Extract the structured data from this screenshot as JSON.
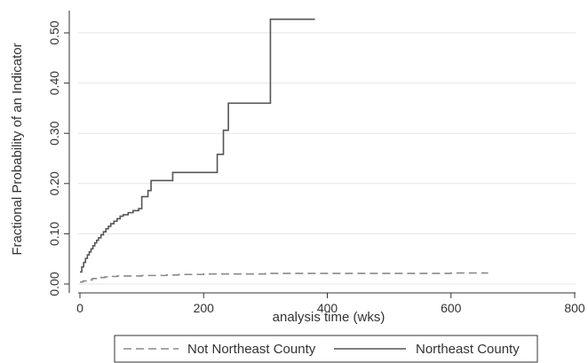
{
  "chart_data": {
    "type": "line",
    "subtype": "step",
    "xlabel": "analysis time (wks)",
    "ylabel": "Fractional Probability of an Indicator",
    "xlim": [
      0,
      800
    ],
    "ylim": [
      0,
      0.55
    ],
    "x_ticks": [
      {
        "value": 0,
        "label": "0"
      },
      {
        "value": 200,
        "label": "200"
      },
      {
        "value": 400,
        "label": "400"
      },
      {
        "value": 600,
        "label": "600"
      },
      {
        "value": 800,
        "label": "800"
      }
    ],
    "y_ticks": [
      {
        "value": 0.0,
        "label": "0.00"
      },
      {
        "value": 0.1,
        "label": "0.10"
      },
      {
        "value": 0.2,
        "label": "0.20"
      },
      {
        "value": 0.3,
        "label": "0.30"
      },
      {
        "value": 0.4,
        "label": "0.40"
      },
      {
        "value": 0.5,
        "label": "0.50"
      }
    ],
    "grid": "horizontal",
    "legend_position": "bottom",
    "series": [
      {
        "name": "Not Northeast County",
        "style": "dashed",
        "color": "#8a8a8a",
        "x": [
          0,
          5,
          10,
          20,
          30,
          40,
          50,
          60,
          80,
          100,
          120,
          140,
          160,
          180,
          200,
          250,
          300,
          400,
          500,
          600,
          660
        ],
        "y": [
          0.004,
          0.006,
          0.008,
          0.011,
          0.013,
          0.014,
          0.015,
          0.016,
          0.016,
          0.017,
          0.017,
          0.018,
          0.019,
          0.019,
          0.02,
          0.02,
          0.021,
          0.021,
          0.021,
          0.022,
          0.022
        ]
      },
      {
        "name": "Northeast County",
        "style": "solid",
        "color": "#555555",
        "x": [
          0,
          3,
          6,
          9,
          12,
          15,
          18,
          21,
          24,
          27,
          30,
          34,
          38,
          42,
          46,
          50,
          55,
          60,
          65,
          70,
          78,
          86,
          95,
          100,
          110,
          115,
          145,
          150,
          218,
          222,
          232,
          236,
          240,
          305,
          308,
          380
        ],
        "y": [
          0.024,
          0.034,
          0.043,
          0.051,
          0.058,
          0.064,
          0.07,
          0.076,
          0.082,
          0.087,
          0.092,
          0.098,
          0.104,
          0.11,
          0.115,
          0.12,
          0.125,
          0.13,
          0.135,
          0.138,
          0.142,
          0.146,
          0.15,
          0.174,
          0.186,
          0.206,
          0.206,
          0.222,
          0.222,
          0.258,
          0.306,
          0.306,
          0.36,
          0.36,
          0.527,
          0.527
        ]
      }
    ]
  }
}
